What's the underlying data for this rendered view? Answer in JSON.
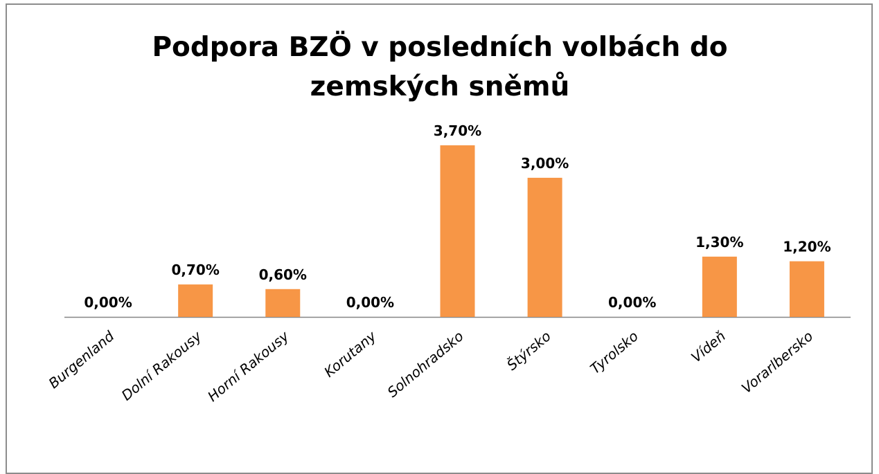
{
  "chart_data": {
    "type": "bar",
    "title": "Podpora BZÖ v posledních volbách do zemských sněmů",
    "categories": [
      "Burgenland",
      "Dolní Rakousy",
      "Horní Rakousy",
      "Korutany",
      "Solnohradsko",
      "Štýrsko",
      "Tyrolsko",
      "Vídeň",
      "Vorarlbersko"
    ],
    "values": [
      0,
      0.7,
      0.6,
      0,
      3.7,
      3.0,
      0,
      1.3,
      1.2
    ],
    "value_labels": [
      "0,00%",
      "0,70%",
      "0,60%",
      "0,00%",
      "3,70%",
      "3,00%",
      "0,00%",
      "1,30%",
      "1,20%"
    ],
    "color": "#f79646"
  }
}
